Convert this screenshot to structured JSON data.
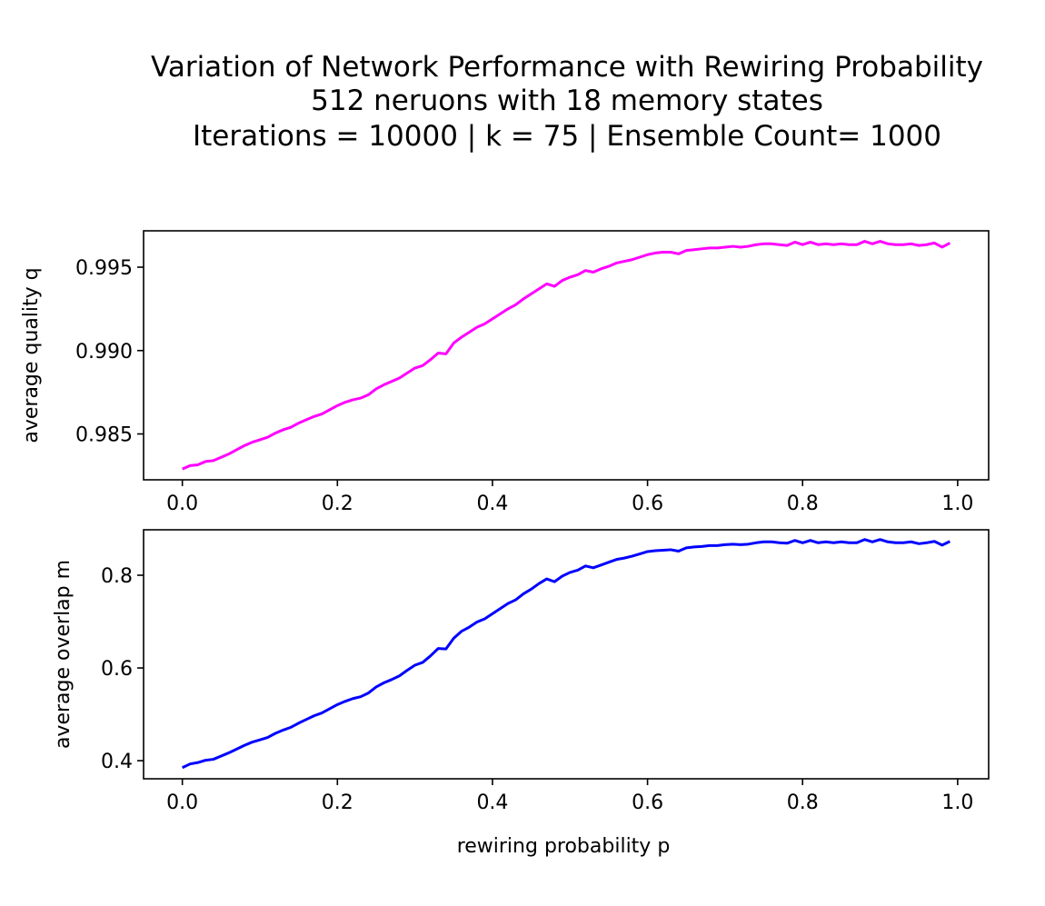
{
  "figure": {
    "title_lines": [
      "Variation of Network Performance with Rewiring Probability",
      "512 neruons with 18 memory states",
      "Iterations = 10000 |  k = 75 | Ensemble Count= 1000"
    ]
  },
  "chart_data": [
    {
      "type": "line",
      "xlabel": "",
      "ylabel": "average quality q",
      "xlim": [
        -0.05,
        1.04
      ],
      "ylim": [
        0.98225,
        0.99718
      ],
      "xticks": [
        "0.0",
        "0.2",
        "0.4",
        "0.6",
        "0.8",
        "1.0"
      ],
      "yticks": [
        "0.985",
        "0.990",
        "0.995"
      ],
      "grid": false,
      "series": [
        {
          "color": "#ff00ff",
          "x": [
            0.0,
            0.01,
            0.02,
            0.03,
            0.04,
            0.05,
            0.06,
            0.07,
            0.08,
            0.09,
            0.1,
            0.11,
            0.12,
            0.13,
            0.14,
            0.15,
            0.16,
            0.17,
            0.18,
            0.19,
            0.2,
            0.21,
            0.22,
            0.23,
            0.24,
            0.25,
            0.26,
            0.27,
            0.28,
            0.29,
            0.3,
            0.31,
            0.32,
            0.33,
            0.34,
            0.35,
            0.36,
            0.37,
            0.38,
            0.39,
            0.4,
            0.41,
            0.42,
            0.43,
            0.44,
            0.45,
            0.46,
            0.47,
            0.48,
            0.49,
            0.5,
            0.51,
            0.52,
            0.53,
            0.54,
            0.55,
            0.56,
            0.57,
            0.58,
            0.59,
            0.6,
            0.61,
            0.62,
            0.63,
            0.64,
            0.65,
            0.66,
            0.67,
            0.68,
            0.69,
            0.7,
            0.71,
            0.72,
            0.73,
            0.74,
            0.75,
            0.76,
            0.77,
            0.78,
            0.79,
            0.8,
            0.81,
            0.82,
            0.83,
            0.84,
            0.85,
            0.86,
            0.87,
            0.88,
            0.89,
            0.9,
            0.91,
            0.92,
            0.93,
            0.94,
            0.95,
            0.96,
            0.97,
            0.98,
            0.99
          ],
          "y": [
            0.9829,
            0.9831,
            0.98315,
            0.98335,
            0.9834,
            0.9836,
            0.9838,
            0.98405,
            0.9843,
            0.9845,
            0.98465,
            0.9848,
            0.98505,
            0.98525,
            0.9854,
            0.98565,
            0.98585,
            0.98605,
            0.9862,
            0.98645,
            0.9867,
            0.9869,
            0.98705,
            0.98715,
            0.98735,
            0.9877,
            0.98795,
            0.98815,
            0.98835,
            0.98865,
            0.98895,
            0.9891,
            0.98945,
            0.98985,
            0.9898,
            0.99045,
            0.9908,
            0.9911,
            0.9914,
            0.9916,
            0.9919,
            0.9922,
            0.9925,
            0.99275,
            0.9931,
            0.9934,
            0.9937,
            0.994,
            0.99385,
            0.9942,
            0.9944,
            0.99455,
            0.9948,
            0.9947,
            0.9949,
            0.99505,
            0.99525,
            0.99535,
            0.99545,
            0.9956,
            0.99575,
            0.99585,
            0.9959,
            0.9959,
            0.9958,
            0.996,
            0.99605,
            0.9961,
            0.99615,
            0.99615,
            0.9962,
            0.99625,
            0.9962,
            0.99625,
            0.99635,
            0.9964,
            0.9964,
            0.99635,
            0.9963,
            0.9965,
            0.99635,
            0.9965,
            0.99635,
            0.9964,
            0.99635,
            0.9964,
            0.99635,
            0.99635,
            0.99655,
            0.9964,
            0.99655,
            0.9964,
            0.99635,
            0.99635,
            0.9964,
            0.9963,
            0.99635,
            0.99645,
            0.9962,
            0.99645
          ]
        }
      ]
    },
    {
      "type": "line",
      "xlabel": "rewiring probability p",
      "ylabel": "average overlap m",
      "xlim": [
        -0.05,
        1.04
      ],
      "ylim": [
        0.361,
        0.898
      ],
      "xticks": [
        "0.0",
        "0.2",
        "0.4",
        "0.6",
        "0.8",
        "1.0"
      ],
      "yticks": [
        "0.4",
        "0.6",
        "0.8"
      ],
      "grid": false,
      "series": [
        {
          "color": "#0000ff",
          "x": [
            0.0,
            0.01,
            0.02,
            0.03,
            0.04,
            0.05,
            0.06,
            0.07,
            0.08,
            0.09,
            0.1,
            0.11,
            0.12,
            0.13,
            0.14,
            0.15,
            0.16,
            0.17,
            0.18,
            0.19,
            0.2,
            0.21,
            0.22,
            0.23,
            0.24,
            0.25,
            0.26,
            0.27,
            0.28,
            0.29,
            0.3,
            0.31,
            0.32,
            0.33,
            0.34,
            0.35,
            0.36,
            0.37,
            0.38,
            0.39,
            0.4,
            0.41,
            0.42,
            0.43,
            0.44,
            0.45,
            0.46,
            0.47,
            0.48,
            0.49,
            0.5,
            0.51,
            0.52,
            0.53,
            0.54,
            0.55,
            0.56,
            0.57,
            0.58,
            0.59,
            0.6,
            0.61,
            0.62,
            0.63,
            0.64,
            0.65,
            0.66,
            0.67,
            0.68,
            0.69,
            0.7,
            0.71,
            0.72,
            0.73,
            0.74,
            0.75,
            0.76,
            0.77,
            0.78,
            0.79,
            0.8,
            0.81,
            0.82,
            0.83,
            0.84,
            0.85,
            0.86,
            0.87,
            0.88,
            0.89,
            0.9,
            0.91,
            0.92,
            0.93,
            0.94,
            0.95,
            0.96,
            0.97,
            0.98,
            0.99
          ],
          "y": [
            0.385,
            0.393,
            0.396,
            0.401,
            0.403,
            0.41,
            0.417,
            0.425,
            0.433,
            0.44,
            0.445,
            0.45,
            0.459,
            0.466,
            0.472,
            0.481,
            0.489,
            0.497,
            0.503,
            0.512,
            0.521,
            0.528,
            0.534,
            0.538,
            0.546,
            0.559,
            0.568,
            0.575,
            0.583,
            0.595,
            0.606,
            0.612,
            0.626,
            0.642,
            0.641,
            0.664,
            0.679,
            0.688,
            0.699,
            0.706,
            0.717,
            0.728,
            0.739,
            0.747,
            0.76,
            0.77,
            0.782,
            0.792,
            0.786,
            0.798,
            0.806,
            0.811,
            0.82,
            0.816,
            0.822,
            0.828,
            0.834,
            0.837,
            0.841,
            0.846,
            0.851,
            0.853,
            0.854,
            0.855,
            0.852,
            0.859,
            0.861,
            0.862,
            0.864,
            0.864,
            0.866,
            0.867,
            0.866,
            0.867,
            0.87,
            0.872,
            0.872,
            0.87,
            0.869,
            0.875,
            0.87,
            0.875,
            0.87,
            0.872,
            0.87,
            0.872,
            0.87,
            0.87,
            0.877,
            0.872,
            0.877,
            0.872,
            0.87,
            0.87,
            0.872,
            0.868,
            0.87,
            0.873,
            0.865,
            0.873
          ]
        }
      ]
    }
  ]
}
